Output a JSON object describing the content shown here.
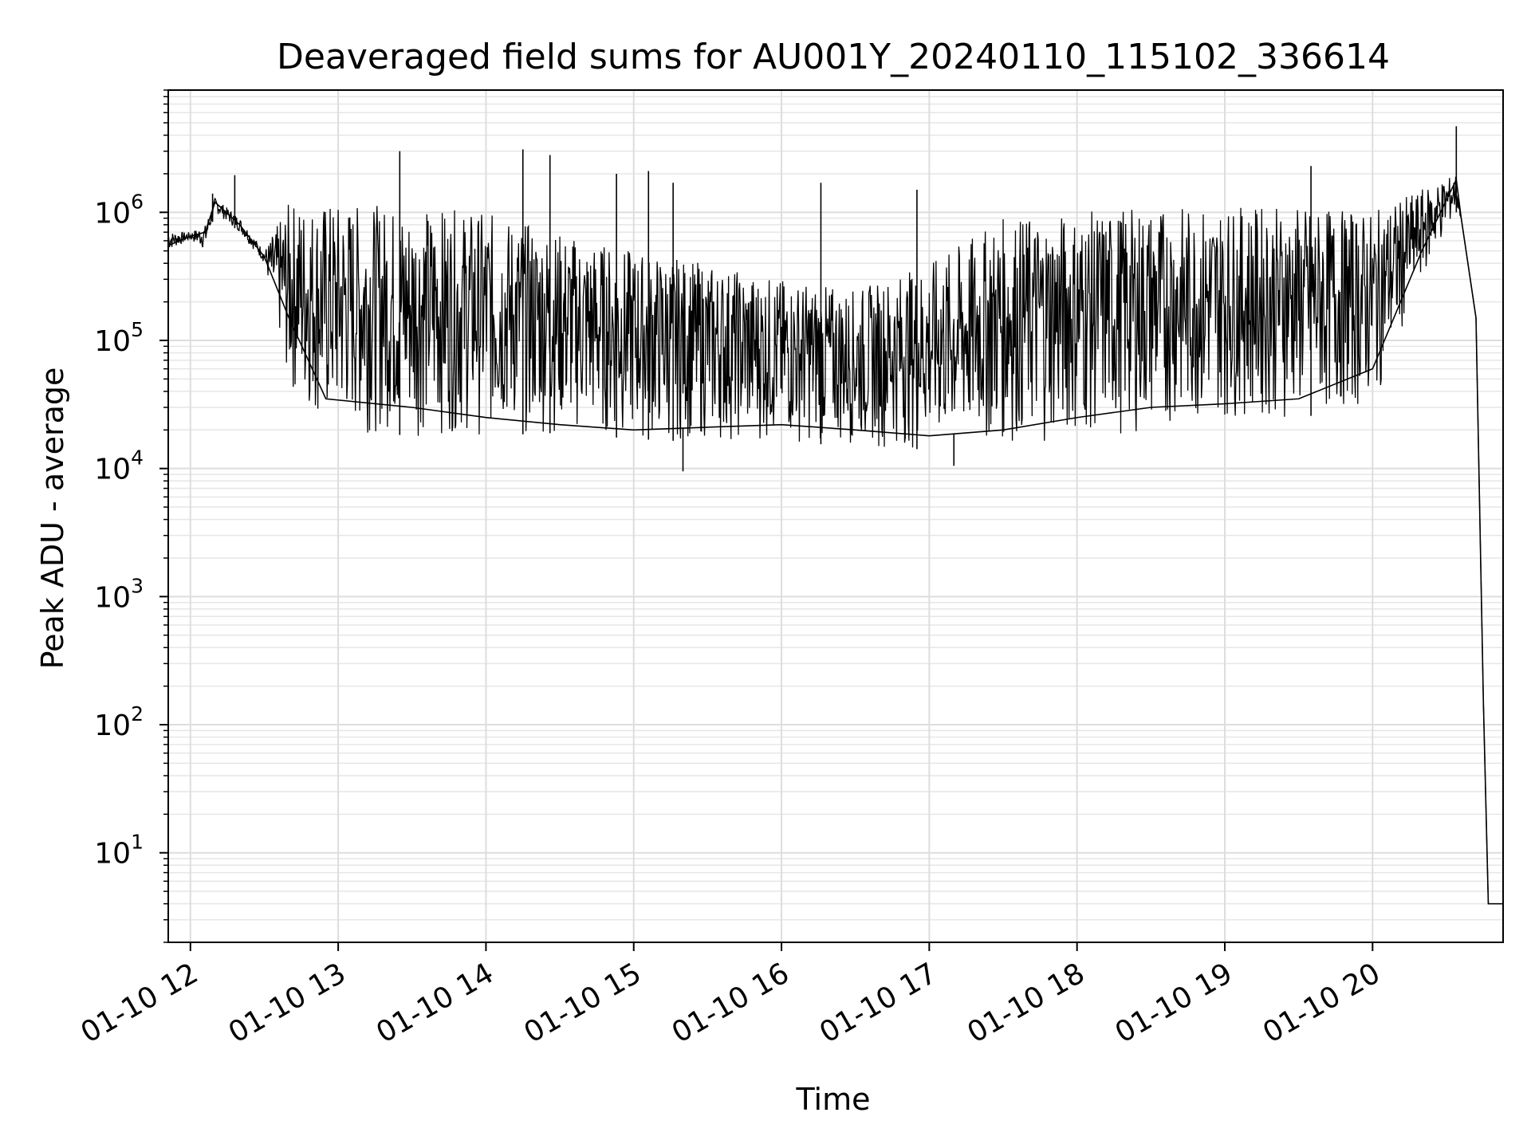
{
  "chart_data": {
    "type": "line",
    "title": "Deaveraged field sums for AU001Y_20240110_115102_336614",
    "xlabel": "Time",
    "ylabel": "Peak ADU - average",
    "y_scale": "log",
    "ylim": [
      2,
      9000000
    ],
    "xlim": [
      "2024-01-10 11:51",
      "2024-01-10 20:53"
    ],
    "grid": true,
    "line_color": "#000000",
    "x_ticks": [
      {
        "value": "2024-01-10 12:00",
        "label": "01-10 12"
      },
      {
        "value": "2024-01-10 13:00",
        "label": "01-10 13"
      },
      {
        "value": "2024-01-10 14:00",
        "label": "01-10 14"
      },
      {
        "value": "2024-01-10 15:00",
        "label": "01-10 15"
      },
      {
        "value": "2024-01-10 16:00",
        "label": "01-10 16"
      },
      {
        "value": "2024-01-10 17:00",
        "label": "01-10 17"
      },
      {
        "value": "2024-01-10 18:00",
        "label": "01-10 18"
      },
      {
        "value": "2024-01-10 19:00",
        "label": "01-10 19"
      },
      {
        "value": "2024-01-10 20:00",
        "label": "01-10 20"
      }
    ],
    "y_ticks": [
      {
        "value": 10,
        "base": "10",
        "exp": "1"
      },
      {
        "value": 100,
        "base": "10",
        "exp": "2"
      },
      {
        "value": 1000,
        "base": "10",
        "exp": "3"
      },
      {
        "value": 10000,
        "base": "10",
        "exp": "4"
      },
      {
        "value": 100000,
        "base": "10",
        "exp": "5"
      },
      {
        "value": 1000000,
        "base": "10",
        "exp": "6"
      }
    ],
    "series": [
      {
        "x": [
          "2024-01-10 11:51",
          "2024-01-10 12:00",
          "2024-01-10 12:06",
          "2024-01-10 12:10",
          "2024-01-10 12:20",
          "2024-01-10 12:30",
          "2024-01-10 12:40",
          "2024-01-10 12:55",
          "2024-01-10 13:30",
          "2024-01-10 14:00",
          "2024-01-10 14:30",
          "2024-01-10 15:00",
          "2024-01-10 15:30",
          "2024-01-10 16:00",
          "2024-01-10 16:30",
          "2024-01-10 17:00",
          "2024-01-10 17:30",
          "2024-01-10 18:00",
          "2024-01-10 18:30",
          "2024-01-10 19:00",
          "2024-01-10 19:30",
          "2024-01-10 20:00",
          "2024-01-10 20:20",
          "2024-01-10 20:34",
          "2024-01-10 20:36",
          "2024-01-10 20:42",
          "2024-01-10 20:45",
          "2024-01-10 20:47",
          "2024-01-10 20:53"
        ],
        "y": [
          550000,
          650000,
          700000,
          1200000,
          800000,
          450000,
          150000,
          35000,
          30000,
          25000,
          22000,
          20000,
          21000,
          22000,
          20000,
          18000,
          20000,
          25000,
          30000,
          32000,
          35000,
          60000,
          500000,
          1800000,
          900000,
          150000,
          150,
          4,
          4
        ],
        "hi": [
          700000,
          700000,
          800000,
          1300000,
          900000,
          500000,
          1200000,
          1200000,
          1100000,
          1000000,
          700000,
          500000,
          400000,
          300000,
          250000,
          400000,
          900000,
          1000000,
          1100000,
          1100000,
          1100000,
          1000000,
          1500000,
          2000000,
          900000,
          150000,
          150,
          4,
          4
        ],
        "lo": [
          500000,
          600000,
          500000,
          1000000,
          700000,
          400000,
          40000,
          20000,
          18000,
          18000,
          19000,
          17000,
          16000,
          16000,
          15000,
          14000,
          15000,
          17000,
          20000,
          25000,
          25000,
          30000,
          300000,
          1000000,
          900000,
          150000,
          150,
          4,
          4
        ]
      }
    ],
    "spikes": [
      {
        "x": "2024-01-10 12:09",
        "y": 1400000
      },
      {
        "x": "2024-01-10 12:18",
        "y": 1950000
      },
      {
        "x": "2024-01-10 13:25",
        "y": 3000000
      },
      {
        "x": "2024-01-10 14:15",
        "y": 3100000
      },
      {
        "x": "2024-01-10 14:26",
        "y": 2800000
      },
      {
        "x": "2024-01-10 14:53",
        "y": 2000000
      },
      {
        "x": "2024-01-10 15:06",
        "y": 2100000
      },
      {
        "x": "2024-01-10 15:16",
        "y": 1700000
      },
      {
        "x": "2024-01-10 16:16",
        "y": 1700000
      },
      {
        "x": "2024-01-10 16:55",
        "y": 1500000
      },
      {
        "x": "2024-01-10 19:35",
        "y": 2300000
      },
      {
        "x": "2024-01-10 20:34",
        "y": 4700000
      }
    ],
    "dips": [
      {
        "x": "2024-01-10 15:20",
        "y": 9500
      },
      {
        "x": "2024-01-10 17:10",
        "y": 10500
      }
    ]
  }
}
